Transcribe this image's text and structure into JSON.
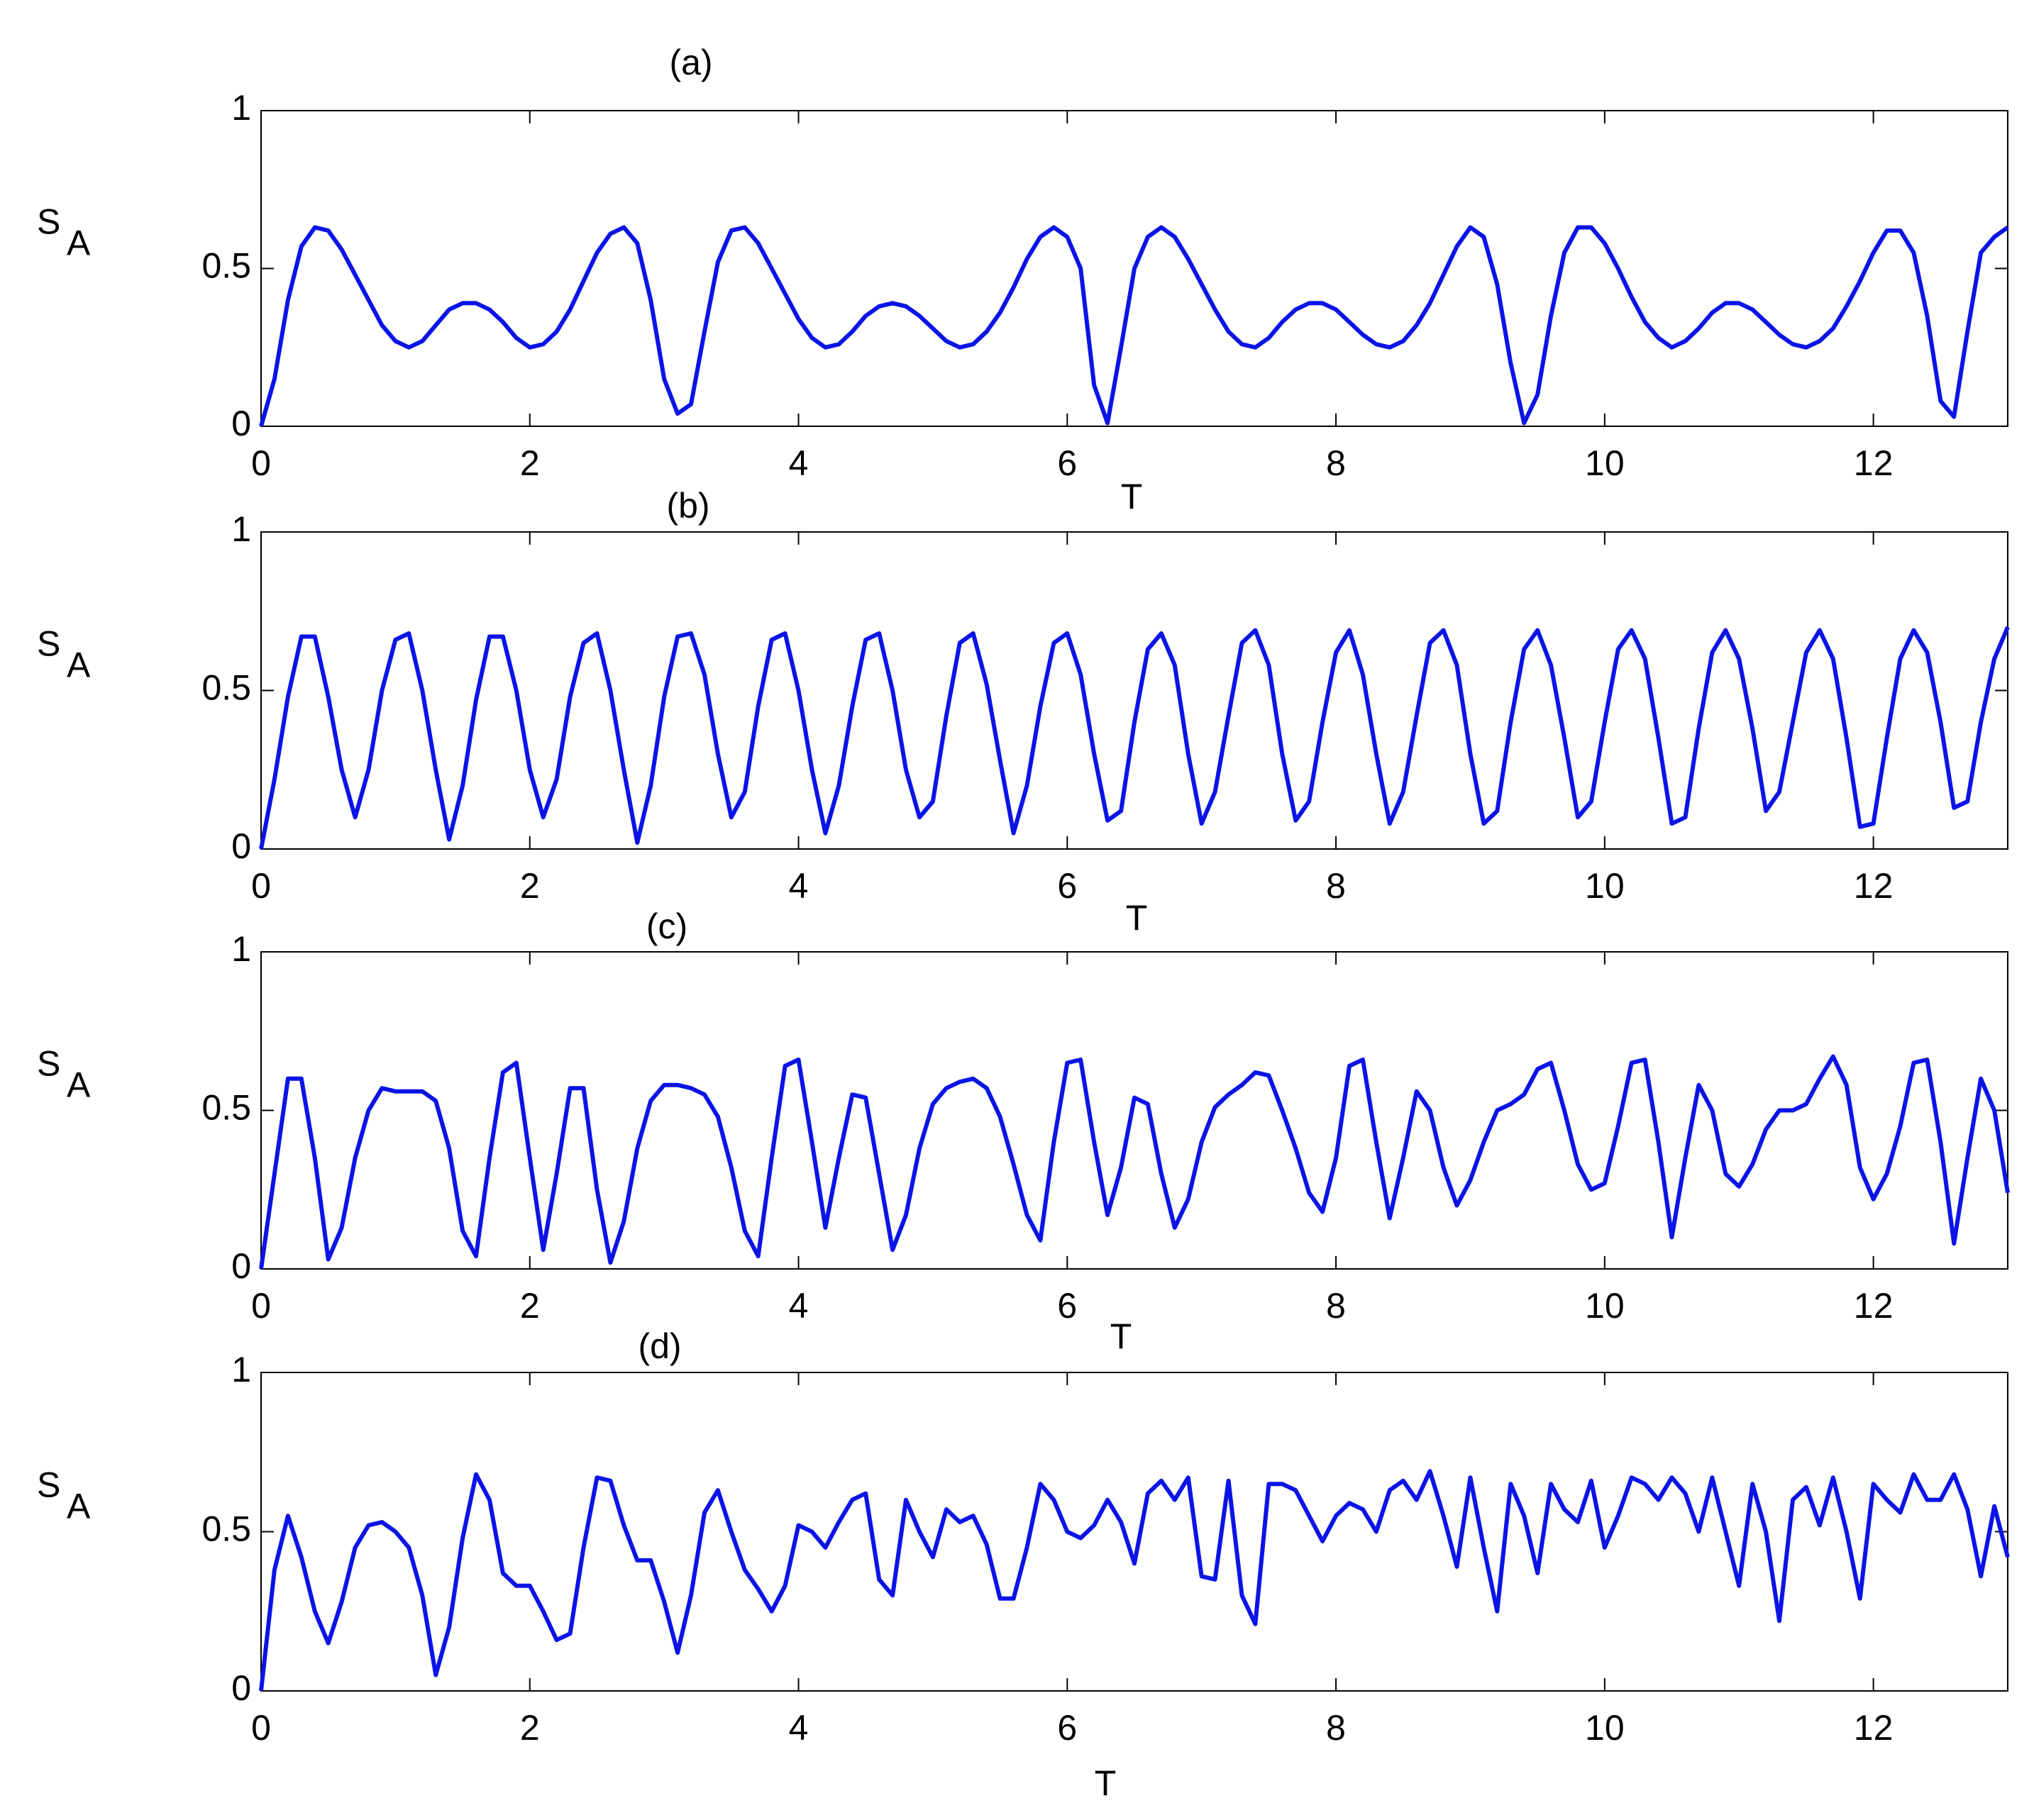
{
  "chart_data": [
    {
      "type": "line",
      "title": "(a)",
      "xlabel": "T",
      "ylabel": "S",
      "ylabel_sub": "A",
      "color": "#0a14e6",
      "xlim": [
        0,
        13
      ],
      "xticks": [
        0,
        2,
        4,
        6,
        8,
        10,
        12
      ],
      "ylim": [
        0,
        1
      ],
      "yticks": [
        0,
        0.5,
        1
      ],
      "x": [
        0,
        0.1,
        0.2,
        0.3,
        0.4,
        0.5,
        0.6,
        0.7,
        0.8,
        0.9,
        1,
        1.1,
        1.2,
        1.3,
        1.4,
        1.5,
        1.6,
        1.7,
        1.8,
        1.9,
        2,
        2.1,
        2.2,
        2.3,
        2.4,
        2.5,
        2.6,
        2.7,
        2.8,
        2.9,
        3,
        3.1,
        3.2,
        3.3,
        3.4,
        3.5,
        3.6,
        3.7,
        3.8,
        3.9,
        4,
        4.1,
        4.2,
        4.3,
        4.4,
        4.5,
        4.6,
        4.7,
        4.8,
        4.9,
        5,
        5.1,
        5.2,
        5.3,
        5.4,
        5.5,
        5.6,
        5.7,
        5.8,
        5.9,
        6,
        6.1,
        6.2,
        6.3,
        6.4,
        6.5,
        6.6,
        6.7,
        6.8,
        6.9,
        7,
        7.1,
        7.2,
        7.3,
        7.4,
        7.5,
        7.6,
        7.7,
        7.8,
        7.9,
        8,
        8.1,
        8.2,
        8.3,
        8.4,
        8.5,
        8.6,
        8.7,
        8.8,
        8.9,
        9,
        9.1,
        9.2,
        9.3,
        9.4,
        9.5,
        9.6,
        9.7,
        9.8,
        9.9,
        10,
        10.1,
        10.2,
        10.3,
        10.4,
        10.5,
        10.6,
        10.7,
        10.8,
        10.9,
        11,
        11.1,
        11.2,
        11.3,
        11.4,
        11.5,
        11.6,
        11.7,
        11.8,
        11.9,
        12,
        12.1,
        12.2,
        12.3,
        12.4,
        12.5,
        12.6,
        12.7,
        12.8,
        12.9,
        13
      ],
      "values": [
        0,
        0.15,
        0.4,
        0.57,
        0.63,
        0.62,
        0.56,
        0.48,
        0.4,
        0.32,
        0.27,
        0.25,
        0.27,
        0.32,
        0.37,
        0.39,
        0.39,
        0.37,
        0.33,
        0.28,
        0.25,
        0.26,
        0.3,
        0.37,
        0.46,
        0.55,
        0.61,
        0.63,
        0.58,
        0.4,
        0.15,
        0.04,
        0.07,
        0.3,
        0.52,
        0.62,
        0.63,
        0.58,
        0.5,
        0.42,
        0.34,
        0.28,
        0.25,
        0.26,
        0.3,
        0.35,
        0.38,
        0.39,
        0.38,
        0.35,
        0.31,
        0.27,
        0.25,
        0.26,
        0.3,
        0.36,
        0.44,
        0.53,
        0.6,
        0.63,
        0.6,
        0.5,
        0.13,
        0.01,
        0.25,
        0.5,
        0.6,
        0.63,
        0.6,
        0.53,
        0.45,
        0.37,
        0.3,
        0.26,
        0.25,
        0.28,
        0.33,
        0.37,
        0.39,
        0.39,
        0.37,
        0.33,
        0.29,
        0.26,
        0.25,
        0.27,
        0.32,
        0.39,
        0.48,
        0.57,
        0.63,
        0.6,
        0.45,
        0.2,
        0.01,
        0.1,
        0.35,
        0.55,
        0.63,
        0.63,
        0.58,
        0.5,
        0.41,
        0.33,
        0.28,
        0.25,
        0.27,
        0.31,
        0.36,
        0.39,
        0.39,
        0.37,
        0.33,
        0.29,
        0.26,
        0.25,
        0.27,
        0.31,
        0.38,
        0.46,
        0.55,
        0.62,
        0.62,
        0.55,
        0.35,
        0.08,
        0.03,
        0.3,
        0.55,
        0.6,
        0.63
      ]
    },
    {
      "type": "line",
      "title": "(b)",
      "xlabel": "T",
      "ylabel": "S",
      "ylabel_sub": "A",
      "color": "#0a14e6",
      "xlim": [
        0,
        13
      ],
      "xticks": [
        0,
        2,
        4,
        6,
        8,
        10,
        12
      ],
      "ylim": [
        0,
        1
      ],
      "yticks": [
        0,
        0.5,
        1
      ],
      "x": [
        0,
        0.1,
        0.2,
        0.3,
        0.4,
        0.5,
        0.6,
        0.7,
        0.8,
        0.9,
        1,
        1.1,
        1.2,
        1.3,
        1.4,
        1.5,
        1.6,
        1.7,
        1.8,
        1.9,
        2,
        2.1,
        2.2,
        2.3,
        2.4,
        2.5,
        2.6,
        2.7,
        2.8,
        2.9,
        3,
        3.1,
        3.2,
        3.3,
        3.4,
        3.5,
        3.6,
        3.7,
        3.8,
        3.9,
        4,
        4.1,
        4.2,
        4.3,
        4.4,
        4.5,
        4.6,
        4.7,
        4.8,
        4.9,
        5,
        5.1,
        5.2,
        5.3,
        5.4,
        5.5,
        5.6,
        5.7,
        5.8,
        5.9,
        6,
        6.1,
        6.2,
        6.3,
        6.4,
        6.5,
        6.6,
        6.7,
        6.8,
        6.9,
        7,
        7.1,
        7.2,
        7.3,
        7.4,
        7.5,
        7.6,
        7.7,
        7.8,
        7.9,
        8,
        8.1,
        8.2,
        8.3,
        8.4,
        8.5,
        8.6,
        8.7,
        8.8,
        8.9,
        9,
        9.1,
        9.2,
        9.3,
        9.4,
        9.5,
        9.6,
        9.7,
        9.8,
        9.9,
        10,
        10.1,
        10.2,
        10.3,
        10.4,
        10.5,
        10.6,
        10.7,
        10.8,
        10.9,
        11,
        11.1,
        11.2,
        11.3,
        11.4,
        11.5,
        11.6,
        11.7,
        11.8,
        11.9,
        12,
        12.1,
        12.2,
        12.3,
        12.4,
        12.5,
        12.6,
        12.7,
        12.8,
        12.9,
        13
      ],
      "values": [
        0,
        0.22,
        0.48,
        0.67,
        0.67,
        0.48,
        0.25,
        0.1,
        0.25,
        0.5,
        0.66,
        0.68,
        0.5,
        0.25,
        0.03,
        0.2,
        0.47,
        0.67,
        0.67,
        0.5,
        0.25,
        0.1,
        0.22,
        0.48,
        0.65,
        0.68,
        0.5,
        0.25,
        0.02,
        0.2,
        0.48,
        0.67,
        0.68,
        0.55,
        0.3,
        0.1,
        0.18,
        0.45,
        0.66,
        0.68,
        0.5,
        0.25,
        0.05,
        0.2,
        0.45,
        0.66,
        0.68,
        0.5,
        0.25,
        0.1,
        0.15,
        0.42,
        0.65,
        0.68,
        0.52,
        0.28,
        0.05,
        0.2,
        0.45,
        0.65,
        0.68,
        0.55,
        0.3,
        0.09,
        0.12,
        0.4,
        0.63,
        0.68,
        0.58,
        0.3,
        0.08,
        0.18,
        0.42,
        0.65,
        0.69,
        0.58,
        0.3,
        0.09,
        0.15,
        0.4,
        0.62,
        0.69,
        0.55,
        0.3,
        0.08,
        0.18,
        0.42,
        0.65,
        0.69,
        0.58,
        0.3,
        0.08,
        0.12,
        0.4,
        0.63,
        0.69,
        0.58,
        0.35,
        0.1,
        0.15,
        0.4,
        0.63,
        0.69,
        0.6,
        0.35,
        0.08,
        0.1,
        0.38,
        0.62,
        0.69,
        0.6,
        0.38,
        0.12,
        0.18,
        0.4,
        0.62,
        0.69,
        0.6,
        0.35,
        0.07,
        0.08,
        0.35,
        0.6,
        0.69,
        0.62,
        0.4,
        0.13,
        0.15,
        0.4,
        0.6,
        0.7
      ]
    },
    {
      "type": "line",
      "title": "(c)",
      "xlabel": "T",
      "ylabel": "S",
      "ylabel_sub": "A",
      "color": "#0a14e6",
      "xlim": [
        0,
        13
      ],
      "xticks": [
        0,
        2,
        4,
        6,
        8,
        10,
        12
      ],
      "ylim": [
        0,
        1
      ],
      "yticks": [
        0,
        0.5,
        1
      ],
      "x": [
        0,
        0.1,
        0.2,
        0.3,
        0.4,
        0.5,
        0.6,
        0.7,
        0.8,
        0.9,
        1,
        1.1,
        1.2,
        1.3,
        1.4,
        1.5,
        1.6,
        1.7,
        1.8,
        1.9,
        2,
        2.1,
        2.2,
        2.3,
        2.4,
        2.5,
        2.6,
        2.7,
        2.8,
        2.9,
        3,
        3.1,
        3.2,
        3.3,
        3.4,
        3.5,
        3.6,
        3.7,
        3.8,
        3.9,
        4,
        4.1,
        4.2,
        4.3,
        4.4,
        4.5,
        4.6,
        4.7,
        4.8,
        4.9,
        5,
        5.1,
        5.2,
        5.3,
        5.4,
        5.5,
        5.6,
        5.7,
        5.8,
        5.9,
        6,
        6.1,
        6.2,
        6.3,
        6.4,
        6.5,
        6.6,
        6.7,
        6.8,
        6.9,
        7,
        7.1,
        7.2,
        7.3,
        7.4,
        7.5,
        7.6,
        7.7,
        7.8,
        7.9,
        8,
        8.1,
        8.2,
        8.3,
        8.4,
        8.5,
        8.6,
        8.7,
        8.8,
        8.9,
        9,
        9.1,
        9.2,
        9.3,
        9.4,
        9.5,
        9.6,
        9.7,
        9.8,
        9.9,
        10,
        10.1,
        10.2,
        10.3,
        10.4,
        10.5,
        10.6,
        10.7,
        10.8,
        10.9,
        11,
        11.1,
        11.2,
        11.3,
        11.4,
        11.5,
        11.6,
        11.7,
        11.8,
        11.9,
        12,
        12.1,
        12.2,
        12.3,
        12.4,
        12.5,
        12.6,
        12.7,
        12.8,
        12.9,
        13
      ],
      "values": [
        0,
        0.3,
        0.6,
        0.6,
        0.35,
        0.03,
        0.13,
        0.35,
        0.5,
        0.57,
        0.56,
        0.56,
        0.56,
        0.53,
        0.38,
        0.12,
        0.04,
        0.35,
        0.62,
        0.65,
        0.35,
        0.06,
        0.3,
        0.57,
        0.57,
        0.25,
        0.02,
        0.15,
        0.38,
        0.53,
        0.58,
        0.58,
        0.57,
        0.55,
        0.48,
        0.32,
        0.12,
        0.04,
        0.35,
        0.64,
        0.66,
        0.4,
        0.13,
        0.35,
        0.55,
        0.54,
        0.3,
        0.06,
        0.17,
        0.38,
        0.52,
        0.57,
        0.59,
        0.6,
        0.57,
        0.48,
        0.33,
        0.17,
        0.09,
        0.4,
        0.65,
        0.66,
        0.4,
        0.17,
        0.32,
        0.54,
        0.52,
        0.3,
        0.13,
        0.22,
        0.4,
        0.51,
        0.55,
        0.58,
        0.62,
        0.61,
        0.5,
        0.38,
        0.24,
        0.18,
        0.35,
        0.64,
        0.66,
        0.4,
        0.16,
        0.35,
        0.56,
        0.5,
        0.32,
        0.2,
        0.28,
        0.4,
        0.5,
        0.52,
        0.55,
        0.63,
        0.65,
        0.5,
        0.33,
        0.25,
        0.27,
        0.45,
        0.65,
        0.66,
        0.4,
        0.1,
        0.35,
        0.58,
        0.5,
        0.3,
        0.26,
        0.33,
        0.44,
        0.5,
        0.5,
        0.52,
        0.6,
        0.67,
        0.58,
        0.32,
        0.22,
        0.3,
        0.45,
        0.65,
        0.66,
        0.4,
        0.08,
        0.35,
        0.6,
        0.5,
        0.24
      ]
    },
    {
      "type": "line",
      "title": "(d)",
      "xlabel": "T",
      "ylabel": "S",
      "ylabel_sub": "A",
      "color": "#0a14e6",
      "xlim": [
        0,
        13
      ],
      "xticks": [
        0,
        2,
        4,
        6,
        8,
        10,
        12
      ],
      "ylim": [
        0,
        1
      ],
      "yticks": [
        0,
        0.5,
        1
      ],
      "x": [
        0,
        0.1,
        0.2,
        0.3,
        0.4,
        0.5,
        0.6,
        0.7,
        0.8,
        0.9,
        1,
        1.1,
        1.2,
        1.3,
        1.4,
        1.5,
        1.6,
        1.7,
        1.8,
        1.9,
        2,
        2.1,
        2.2,
        2.3,
        2.4,
        2.5,
        2.6,
        2.7,
        2.8,
        2.9,
        3,
        3.1,
        3.2,
        3.3,
        3.4,
        3.5,
        3.6,
        3.7,
        3.8,
        3.9,
        4,
        4.1,
        4.2,
        4.3,
        4.4,
        4.5,
        4.6,
        4.7,
        4.8,
        4.9,
        5,
        5.1,
        5.2,
        5.3,
        5.4,
        5.5,
        5.6,
        5.7,
        5.8,
        5.9,
        6,
        6.1,
        6.2,
        6.3,
        6.4,
        6.5,
        6.6,
        6.7,
        6.8,
        6.9,
        7,
        7.1,
        7.2,
        7.3,
        7.4,
        7.5,
        7.6,
        7.7,
        7.8,
        7.9,
        8,
        8.1,
        8.2,
        8.3,
        8.4,
        8.5,
        8.6,
        8.7,
        8.8,
        8.9,
        9,
        9.1,
        9.2,
        9.3,
        9.4,
        9.5,
        9.6,
        9.7,
        9.8,
        9.9,
        10,
        10.1,
        10.2,
        10.3,
        10.4,
        10.5,
        10.6,
        10.7,
        10.8,
        10.9,
        11,
        11.1,
        11.2,
        11.3,
        11.4,
        11.5,
        11.6,
        11.7,
        11.8,
        11.9,
        12,
        12.1,
        12.2,
        12.3,
        12.4,
        12.5,
        12.6,
        12.7,
        12.8,
        12.9,
        13
      ],
      "values": [
        0,
        0.38,
        0.55,
        0.42,
        0.25,
        0.15,
        0.28,
        0.45,
        0.52,
        0.53,
        0.5,
        0.45,
        0.3,
        0.05,
        0.2,
        0.48,
        0.68,
        0.6,
        0.37,
        0.33,
        0.33,
        0.25,
        0.16,
        0.18,
        0.45,
        0.67,
        0.66,
        0.52,
        0.41,
        0.41,
        0.28,
        0.12,
        0.3,
        0.56,
        0.63,
        0.5,
        0.38,
        0.32,
        0.25,
        0.33,
        0.52,
        0.5,
        0.45,
        0.53,
        0.6,
        0.62,
        0.35,
        0.3,
        0.6,
        0.5,
        0.42,
        0.57,
        0.53,
        0.55,
        0.46,
        0.29,
        0.29,
        0.45,
        0.65,
        0.6,
        0.5,
        0.48,
        0.52,
        0.6,
        0.53,
        0.4,
        0.62,
        0.66,
        0.6,
        0.67,
        0.36,
        0.35,
        0.66,
        0.3,
        0.21,
        0.65,
        0.65,
        0.63,
        0.55,
        0.47,
        0.55,
        0.59,
        0.57,
        0.5,
        0.63,
        0.66,
        0.6,
        0.69,
        0.55,
        0.39,
        0.67,
        0.45,
        0.25,
        0.65,
        0.55,
        0.37,
        0.65,
        0.57,
        0.53,
        0.66,
        0.45,
        0.55,
        0.67,
        0.65,
        0.6,
        0.67,
        0.62,
        0.5,
        0.67,
        0.5,
        0.33,
        0.65,
        0.5,
        0.22,
        0.6,
        0.64,
        0.52,
        0.67,
        0.5,
        0.29,
        0.65,
        0.6,
        0.56,
        0.68,
        0.6,
        0.6,
        0.68,
        0.57,
        0.36,
        0.58,
        0.42
      ]
    }
  ]
}
